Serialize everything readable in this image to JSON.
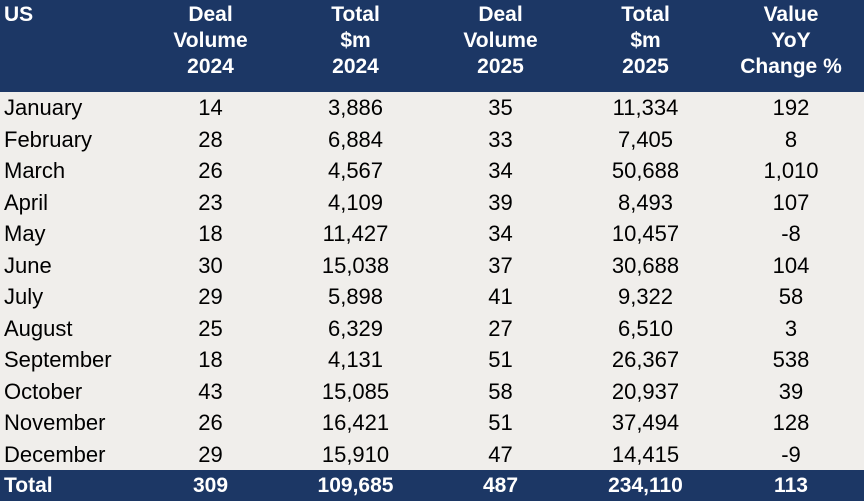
{
  "table": {
    "headers": [
      {
        "lines": [
          "US"
        ]
      },
      {
        "lines": [
          "Deal",
          "Volume",
          "2024"
        ]
      },
      {
        "lines": [
          "Total",
          "$m",
          "2024"
        ]
      },
      {
        "lines": [
          "Deal",
          "Volume",
          "2025"
        ]
      },
      {
        "lines": [
          "Total",
          "$m",
          "2025"
        ]
      },
      {
        "lines": [
          "Value",
          "YoY",
          "Change %"
        ]
      }
    ],
    "rows": [
      [
        "January",
        "14",
        "3,886",
        "35",
        "11,334",
        "192"
      ],
      [
        "February",
        "28",
        "6,884",
        "33",
        "7,405",
        "8"
      ],
      [
        "March",
        "26",
        "4,567",
        "34",
        "50,688",
        "1,010"
      ],
      [
        "April",
        "23",
        "4,109",
        "39",
        "8,493",
        "107"
      ],
      [
        "May",
        "18",
        "11,427",
        "34",
        "10,457",
        "-8"
      ],
      [
        "June",
        "30",
        "15,038",
        "37",
        "30,688",
        "104"
      ],
      [
        "July",
        "29",
        "5,898",
        "41",
        "9,322",
        "58"
      ],
      [
        "August",
        "25",
        "6,329",
        "27",
        "6,510",
        "3"
      ],
      [
        "September",
        "18",
        "4,131",
        "51",
        "26,367",
        "538"
      ],
      [
        "October",
        "43",
        "15,085",
        "58",
        "20,937",
        "39"
      ],
      [
        "November",
        "26",
        "16,421",
        "51",
        "37,494",
        "128"
      ],
      [
        "December",
        "29",
        "15,910",
        "47",
        "14,415",
        "-9"
      ]
    ],
    "total": [
      "Total",
      "309",
      "109,685",
      "487",
      "234,110",
      "113"
    ]
  },
  "colors": {
    "header_bg": "#1c3765",
    "body_bg": "#f0eeeb",
    "header_text": "#ffffff",
    "body_text": "#000000"
  }
}
